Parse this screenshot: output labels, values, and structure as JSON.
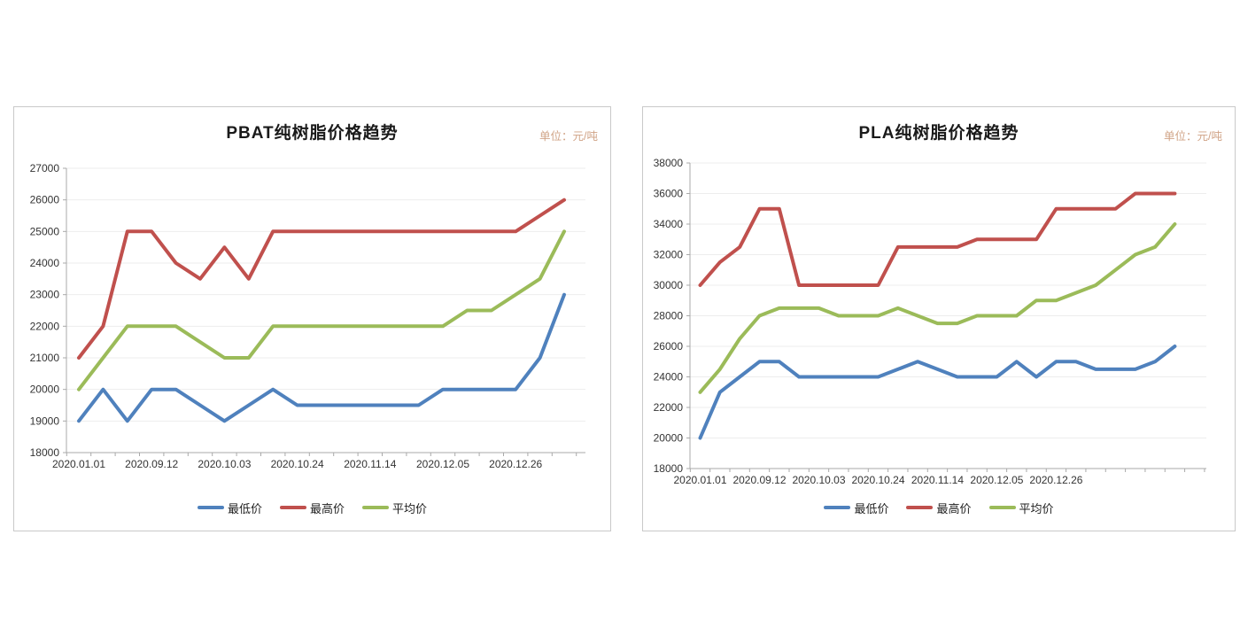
{
  "page": {
    "background": "#ffffff"
  },
  "palette": {
    "low": "#4f81bd",
    "high": "#c0504d",
    "avg": "#9bbb59",
    "grid": "#ededed",
    "axis": "#a9a9a9",
    "unit_text": "#d0a386"
  },
  "chart_data": [
    {
      "type": "line",
      "title": "PBAT纯树脂价格趋势",
      "unit_label": "单位：元/吨",
      "ylabel": "",
      "xlabel": "",
      "ylim": [
        18000,
        27000
      ],
      "y_axis": {
        "min": 18000,
        "max": 27000,
        "step": 1000
      },
      "x_labels": [
        "2020.01.01",
        "2020.09.12",
        "2020.10.03",
        "2020.10.24",
        "2020.11.14",
        "2020.12.05",
        "2020.12.26"
      ],
      "label_every": 3,
      "n_points": 21,
      "grid": "horizontal",
      "legend_position": "bottom",
      "series": [
        {
          "name": "最低价",
          "color": "#4f81bd",
          "values": [
            19000,
            20000,
            19000,
            20000,
            20000,
            19500,
            19000,
            19500,
            20000,
            19500,
            19500,
            19500,
            19500,
            19500,
            19500,
            20000,
            20000,
            20000,
            20000,
            21000,
            23000
          ]
        },
        {
          "name": "最高价",
          "color": "#c0504d",
          "values": [
            21000,
            22000,
            25000,
            25000,
            24000,
            23500,
            24500,
            23500,
            25000,
            25000,
            25000,
            25000,
            25000,
            25000,
            25000,
            25000,
            25000,
            25000,
            25000,
            25500,
            26000
          ]
        },
        {
          "name": "平均价",
          "color": "#9bbb59",
          "values": [
            20000,
            21000,
            22000,
            22000,
            22000,
            21500,
            21000,
            21000,
            22000,
            22000,
            22000,
            22000,
            22000,
            22000,
            22000,
            22000,
            22500,
            22500,
            23000,
            23500,
            25000
          ]
        }
      ]
    },
    {
      "type": "line",
      "title": "PLA纯树脂价格趋势",
      "unit_label": "单位：元/吨",
      "ylabel": "",
      "xlabel": "",
      "ylim": [
        18000,
        38000
      ],
      "y_axis": {
        "min": 18000,
        "max": 38000,
        "step": 2000
      },
      "x_labels": [
        "2020.01.01",
        "2020.09.12",
        "2020.10.03",
        "2020.10.24",
        "2020.11.14",
        "2020.12.05",
        "2020.12.26"
      ],
      "label_every": 3,
      "n_points": 25,
      "grid": "horizontal",
      "legend_position": "bottom",
      "series": [
        {
          "name": "最低价",
          "color": "#4f81bd",
          "values": [
            20000,
            23000,
            24000,
            25000,
            25000,
            24000,
            24000,
            24000,
            24000,
            24000,
            24500,
            25000,
            24500,
            24000,
            24000,
            24000,
            25000,
            24000,
            25000,
            25000,
            24500,
            24500,
            24500,
            25000,
            26000
          ]
        },
        {
          "name": "最高价",
          "color": "#c0504d",
          "values": [
            30000,
            31500,
            32500,
            35000,
            35000,
            30000,
            30000,
            30000,
            30000,
            30000,
            32500,
            32500,
            32500,
            32500,
            33000,
            33000,
            33000,
            33000,
            35000,
            35000,
            35000,
            35000,
            36000,
            36000,
            36000
          ]
        },
        {
          "name": "平均价",
          "color": "#9bbb59",
          "values": [
            23000,
            24500,
            26500,
            28000,
            28500,
            28500,
            28500,
            28000,
            28000,
            28000,
            28500,
            28000,
            27500,
            27500,
            28000,
            28000,
            28000,
            29000,
            29000,
            29500,
            30000,
            31000,
            32000,
            32500,
            34000
          ]
        }
      ]
    }
  ]
}
